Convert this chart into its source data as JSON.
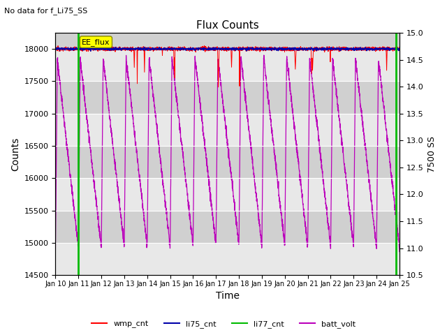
{
  "title": "Flux Counts",
  "subtitle": "No data for f_Li75_SS",
  "xlabel": "Time",
  "ylabel_left": "Counts",
  "ylabel_right": "7500 SS",
  "ylim_left": [
    14500,
    18250
  ],
  "ylim_right": [
    10.5,
    15.0
  ],
  "xtick_labels": [
    "Jan 10",
    "Jan 11",
    "Jan 12",
    "Jan 13",
    "Jan 14",
    "Jan 15",
    "Jan 16",
    "Jan 17",
    "Jan 18",
    "Jan 19",
    "Jan 20",
    "Jan 21",
    "Jan 22",
    "Jan 23",
    "Jan 24",
    "Jan 25"
  ],
  "yticks_left": [
    14500,
    15000,
    15500,
    16000,
    16500,
    17000,
    17500,
    18000
  ],
  "yticks_right": [
    10.5,
    11.0,
    11.5,
    12.0,
    12.5,
    13.0,
    13.5,
    14.0,
    14.5,
    15.0
  ],
  "wmp_color": "#ff0000",
  "li75_color": "#0000aa",
  "li77_color": "#00bb00",
  "batt_color": "#bb00bb",
  "annotation_text": "EE_flux",
  "bg_color": "#d0d0d0",
  "band_color": "#e8e8e8",
  "legend_entries": [
    "wmp_cnt",
    "li75_cnt",
    "li77_cnt",
    "batt_volt"
  ],
  "legend_colors": [
    "#ff0000",
    "#0000aa",
    "#00bb00",
    "#bb00bb"
  ],
  "figsize": [
    6.4,
    4.8
  ],
  "dpi": 100
}
